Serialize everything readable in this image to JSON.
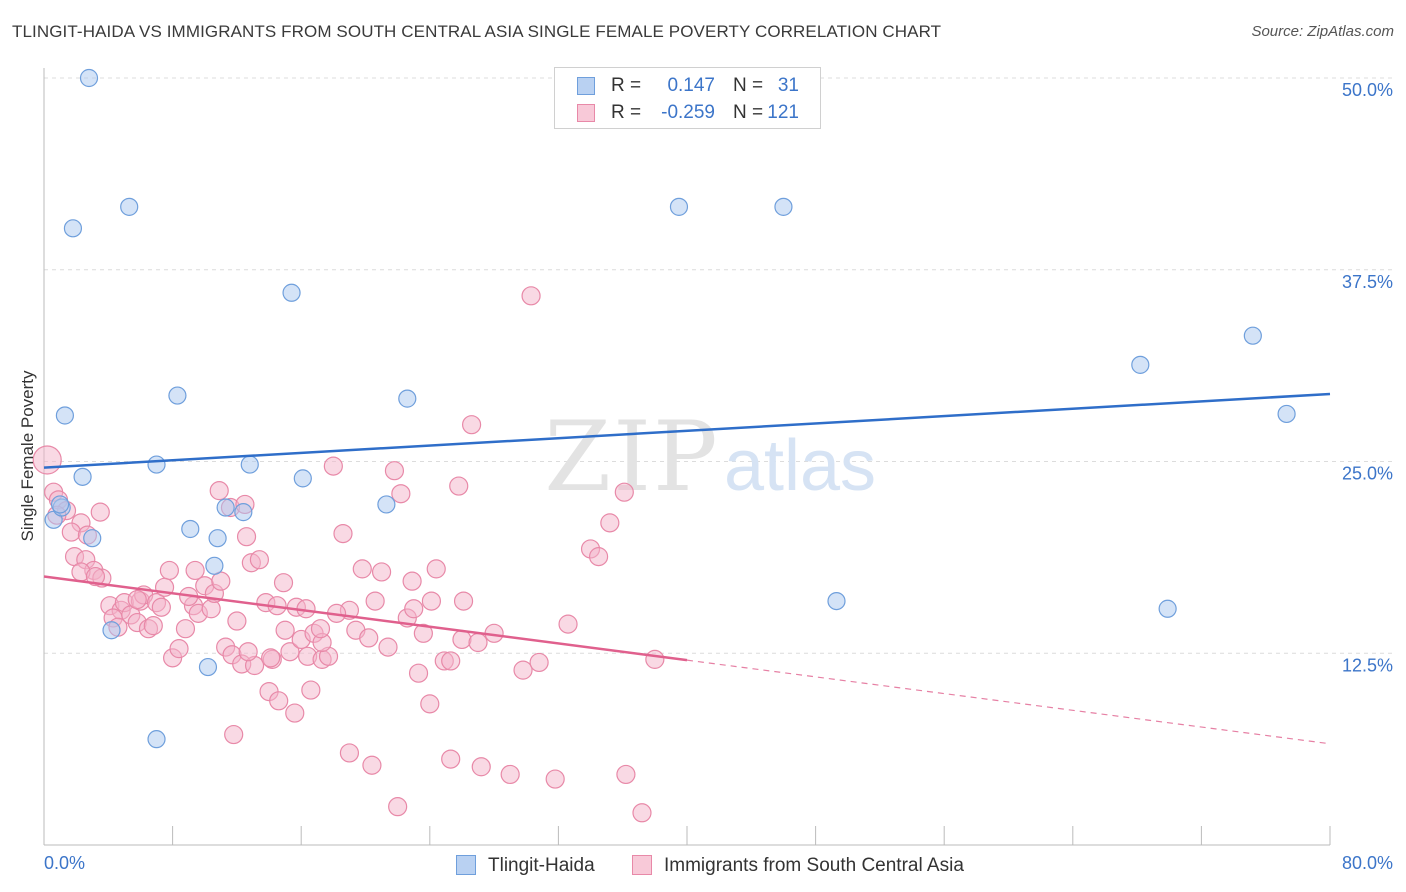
{
  "title": "TLINGIT-HAIDA VS IMMIGRANTS FROM SOUTH CENTRAL ASIA SINGLE FEMALE POVERTY CORRELATION CHART",
  "source": "Source: ZipAtlas.com",
  "watermark": {
    "zip": "ZIP",
    "atlas": "atlas"
  },
  "legend_top": [
    {
      "r_label": "R =",
      "r_value": "0.147",
      "n_label": "N =",
      "n_value": "31"
    },
    {
      "r_label": "R =",
      "r_value": "-0.259",
      "n_label": "N =",
      "n_value": "121"
    }
  ],
  "legend_bottom": [
    "Tlingit-Haida",
    "Immigrants from South Central Asia"
  ],
  "colors": {
    "blue_fill": "#a9c7ef",
    "blue_stroke": "#6f9fdc",
    "blue_line": "#2f6ec9",
    "pink_fill": "#f4b4c9",
    "pink_stroke": "#e889a8",
    "pink_line": "#e0608d",
    "axis_text": "#3c75c9",
    "grid": "#dcdcdc"
  },
  "chart_data": {
    "type": "scatter",
    "title": "TLINGIT-HAIDA VS IMMIGRANTS FROM SOUTH CENTRAL ASIA SINGLE FEMALE POVERTY CORRELATION CHART",
    "xlabel": "",
    "ylabel": "Single Female Poverty",
    "xlim": [
      0,
      80
    ],
    "ylim": [
      0,
      50
    ],
    "x_tick_labels": [
      "0.0%",
      "80.0%"
    ],
    "y_ticks": [
      12.5,
      25.0,
      37.5,
      50.0
    ],
    "y_tick_labels": [
      "12.5%",
      "25.0%",
      "37.5%",
      "50.0%"
    ],
    "grid": true,
    "legend_position": "top-center",
    "series": [
      {
        "name": "Tlingit-Haida",
        "color": "#a9c7ef",
        "trend": {
          "x0": 0,
          "y0": 24.6,
          "x1": 80,
          "y1": 29.4,
          "dashed_from": null
        },
        "points": [
          [
            2.8,
            50.0
          ],
          [
            5.3,
            41.6
          ],
          [
            1.8,
            40.2
          ],
          [
            15.4,
            36.0
          ],
          [
            1.3,
            28.0
          ],
          [
            8.3,
            29.3
          ],
          [
            22.6,
            29.1
          ],
          [
            7.0,
            24.8
          ],
          [
            12.8,
            24.8
          ],
          [
            16.1,
            23.9
          ],
          [
            0.6,
            21.2
          ],
          [
            1.1,
            22.0
          ],
          [
            2.4,
            24.0
          ],
          [
            3.0,
            20.0
          ],
          [
            9.1,
            20.6
          ],
          [
            11.3,
            22.0
          ],
          [
            12.4,
            21.7
          ],
          [
            21.3,
            22.2
          ],
          [
            10.8,
            20.0
          ],
          [
            10.6,
            18.2
          ],
          [
            4.2,
            14.0
          ],
          [
            10.2,
            11.6
          ],
          [
            7.0,
            6.9
          ],
          [
            39.5,
            41.6
          ],
          [
            46.0,
            41.6
          ],
          [
            68.2,
            31.3
          ],
          [
            75.2,
            33.2
          ],
          [
            77.3,
            28.1
          ],
          [
            49.3,
            15.9
          ],
          [
            69.9,
            15.4
          ],
          [
            1.0,
            22.2
          ]
        ]
      },
      {
        "name": "Immigrants from South Central Asia",
        "color": "#f4b4c9",
        "trend": {
          "x0": 0,
          "y0": 17.5,
          "x1": 80,
          "y1": 6.6,
          "dashed_from": 40
        },
        "points": [
          [
            0.2,
            25.1
          ],
          [
            0.6,
            23.0
          ],
          [
            0.9,
            22.5
          ],
          [
            1.4,
            21.8
          ],
          [
            0.8,
            21.5
          ],
          [
            2.3,
            21.0
          ],
          [
            1.7,
            20.4
          ],
          [
            3.5,
            21.7
          ],
          [
            2.7,
            20.2
          ],
          [
            1.9,
            18.8
          ],
          [
            2.6,
            18.6
          ],
          [
            3.1,
            17.9
          ],
          [
            2.3,
            17.8
          ],
          [
            3.6,
            17.4
          ],
          [
            3.2,
            17.5
          ],
          [
            4.1,
            15.6
          ],
          [
            4.8,
            15.3
          ],
          [
            5.0,
            15.8
          ],
          [
            4.3,
            14.8
          ],
          [
            4.6,
            14.2
          ],
          [
            5.4,
            15.0
          ],
          [
            5.8,
            14.5
          ],
          [
            6.0,
            15.9
          ],
          [
            6.5,
            14.1
          ],
          [
            6.2,
            16.3
          ],
          [
            7.0,
            15.8
          ],
          [
            6.8,
            14.3
          ],
          [
            7.3,
            15.5
          ],
          [
            7.8,
            17.9
          ],
          [
            7.5,
            16.8
          ],
          [
            8.0,
            12.2
          ],
          [
            8.4,
            12.8
          ],
          [
            8.8,
            14.1
          ],
          [
            9.3,
            15.6
          ],
          [
            9.0,
            16.2
          ],
          [
            9.6,
            15.1
          ],
          [
            10.0,
            16.9
          ],
          [
            10.4,
            15.4
          ],
          [
            10.6,
            16.4
          ],
          [
            11.0,
            17.2
          ],
          [
            11.3,
            12.9
          ],
          [
            11.7,
            12.4
          ],
          [
            12.0,
            14.6
          ],
          [
            12.3,
            11.8
          ],
          [
            12.6,
            20.1
          ],
          [
            12.9,
            18.4
          ],
          [
            13.4,
            18.6
          ],
          [
            13.8,
            15.8
          ],
          [
            14.2,
            12.1
          ],
          [
            14.5,
            15.6
          ],
          [
            14.9,
            17.1
          ],
          [
            15.3,
            12.6
          ],
          [
            15.7,
            15.5
          ],
          [
            16.0,
            13.4
          ],
          [
            16.4,
            12.3
          ],
          [
            16.8,
            13.8
          ],
          [
            17.3,
            12.1
          ],
          [
            17.7,
            12.3
          ],
          [
            18.0,
            24.7
          ],
          [
            18.6,
            20.3
          ],
          [
            19.0,
            15.3
          ],
          [
            19.4,
            14.0
          ],
          [
            19.8,
            18.0
          ],
          [
            20.2,
            13.5
          ],
          [
            20.6,
            15.9
          ],
          [
            21.0,
            17.8
          ],
          [
            21.4,
            12.9
          ],
          [
            21.8,
            24.4
          ],
          [
            22.2,
            22.9
          ],
          [
            22.6,
            14.8
          ],
          [
            22.9,
            17.2
          ],
          [
            23.3,
            11.2
          ],
          [
            23.6,
            13.8
          ],
          [
            24.0,
            9.2
          ],
          [
            24.4,
            18.0
          ],
          [
            24.9,
            12.0
          ],
          [
            25.3,
            5.6
          ],
          [
            25.8,
            23.4
          ],
          [
            26.1,
            15.9
          ],
          [
            26.6,
            27.4
          ],
          [
            27.2,
            5.1
          ],
          [
            28.0,
            13.8
          ],
          [
            29.0,
            4.6
          ],
          [
            30.3,
            35.8
          ],
          [
            29.8,
            11.4
          ],
          [
            30.8,
            11.9
          ],
          [
            31.8,
            4.3
          ],
          [
            32.6,
            14.4
          ],
          [
            34.0,
            19.3
          ],
          [
            34.5,
            18.8
          ],
          [
            35.2,
            21.0
          ],
          [
            36.1,
            23.0
          ],
          [
            36.2,
            4.6
          ],
          [
            37.2,
            2.1
          ],
          [
            38.0,
            12.1
          ],
          [
            9.4,
            17.9
          ],
          [
            10.9,
            23.1
          ],
          [
            11.6,
            22.0
          ],
          [
            12.5,
            22.2
          ],
          [
            13.1,
            11.7
          ],
          [
            14.0,
            10.0
          ],
          [
            14.6,
            9.4
          ],
          [
            15.6,
            8.6
          ],
          [
            16.6,
            10.1
          ],
          [
            17.3,
            13.2
          ],
          [
            11.8,
            7.2
          ],
          [
            12.7,
            12.6
          ],
          [
            14.1,
            12.2
          ],
          [
            15.0,
            14.0
          ],
          [
            16.3,
            15.4
          ],
          [
            17.2,
            14.1
          ],
          [
            18.2,
            15.1
          ],
          [
            19.0,
            6.0
          ],
          [
            20.4,
            5.2
          ],
          [
            22.0,
            2.5
          ],
          [
            23.0,
            15.4
          ],
          [
            24.1,
            15.9
          ],
          [
            25.3,
            12.0
          ],
          [
            26.0,
            13.4
          ],
          [
            27.0,
            13.2
          ],
          [
            5.8,
            16.0
          ]
        ]
      }
    ]
  }
}
